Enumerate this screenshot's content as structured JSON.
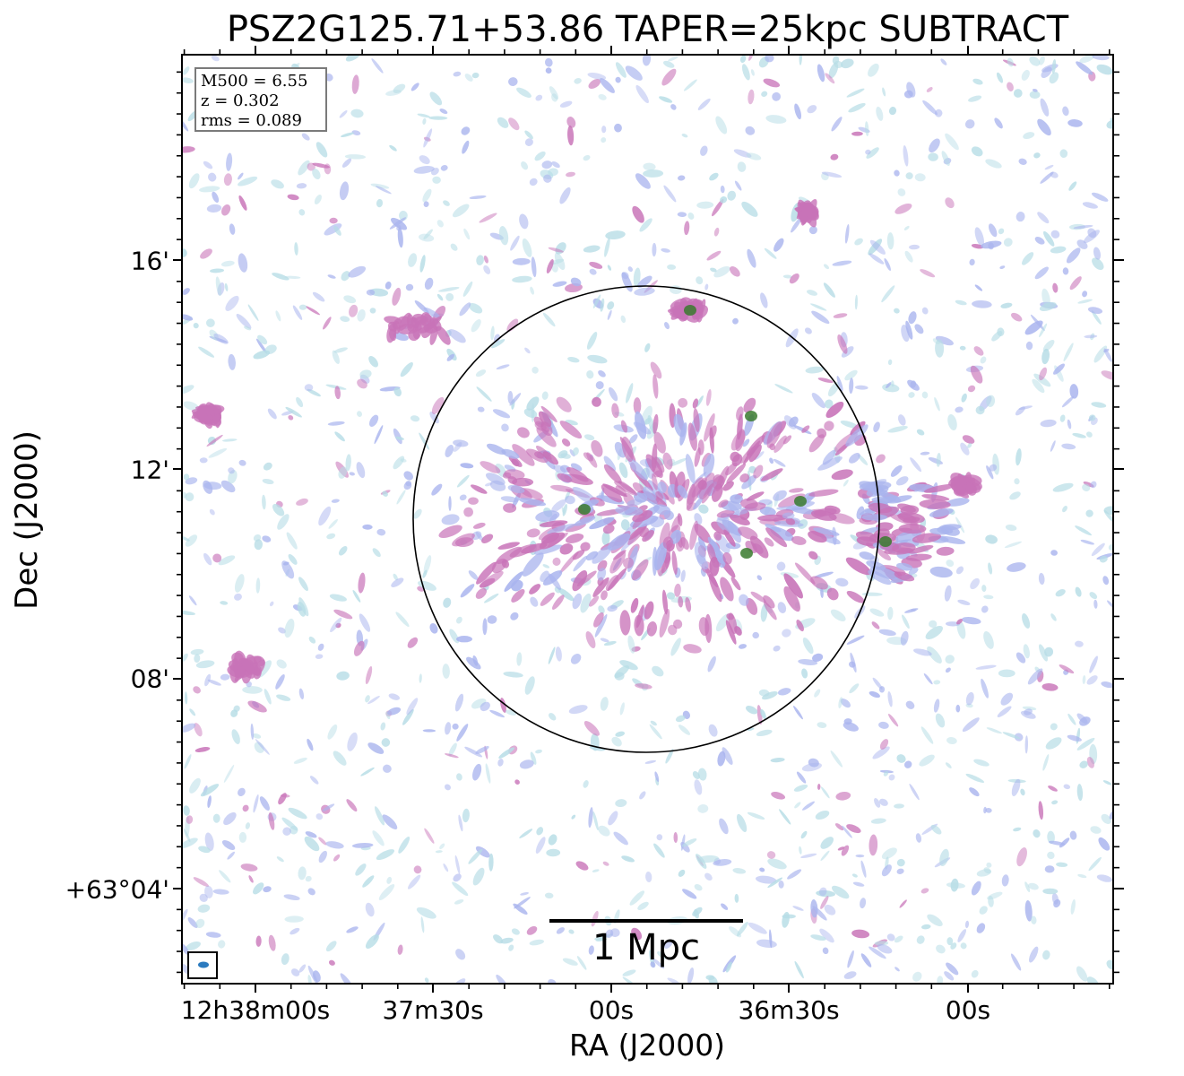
{
  "title": "PSZ2G125.71+53.86 TAPER=25kpc SUBTRACT",
  "axes": {
    "xlabel": "RA (J2000)",
    "ylabel": "Dec (J2000)",
    "xticks": [
      "12h38m00s",
      "37m30s",
      "00s",
      "36m30s",
      "00s"
    ],
    "yticks": [
      "16'",
      "12'",
      "08'",
      "+63°04'"
    ]
  },
  "infobox": {
    "m500": "M500 = 6.55",
    "z": "z = 0.302",
    "rms": "rms = 0.089"
  },
  "scalebar": {
    "label": "1 Mpc"
  },
  "colors": {
    "low": "#b7dde6",
    "mid": "#a9b4ee",
    "high": "#c873b8",
    "peak": "#3a7a2e",
    "beam": "#2b7bbf"
  }
}
